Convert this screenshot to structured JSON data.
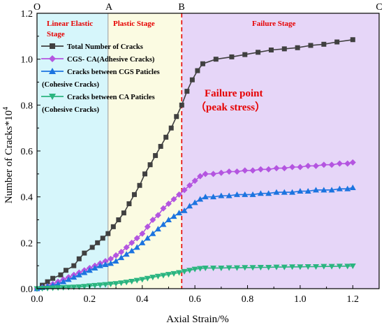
{
  "chart_data": {
    "type": "line",
    "xlabel": "Axial Strain/%",
    "ylabel": "Number of Cracks*10",
    "ylabel_superscript": "4",
    "xlim": [
      0,
      1.3
    ],
    "ylim": [
      0,
      1.2
    ],
    "xticks": [
      "0.0",
      "0.2",
      "0.4",
      "0.6",
      "0.8",
      "1.0",
      "1.2"
    ],
    "yticks": [
      "0.0",
      "0.2",
      "0.4",
      "0.6",
      "0.8",
      "1.0",
      "1.2"
    ],
    "grid": false,
    "legend_placement": "top-left",
    "stages": [
      {
        "name": "Linear Elastic Stage",
        "x_start": 0.0,
        "x_end": 0.27,
        "color": "#d6f6fb"
      },
      {
        "name": "Plastic Stage",
        "x_start": 0.27,
        "x_end": 0.55,
        "color": "#fbfbe2"
      },
      {
        "name": "Failure Stage",
        "x_start": 0.55,
        "x_end": 1.3,
        "color": "#e6d6f8"
      }
    ],
    "stage_points": [
      {
        "label": "O",
        "x": 0.0
      },
      {
        "label": "A",
        "x": 0.27
      },
      {
        "label": "B",
        "x": 0.55
      },
      {
        "label": "C",
        "x": 1.3
      }
    ],
    "failure_line_x": 0.55,
    "annotation": {
      "line1": "Failure point",
      "line2": "（peak stress）"
    },
    "series": [
      {
        "name": "Total Number of Cracks",
        "color": "#404040",
        "marker": "square",
        "x": [
          0.0,
          0.02,
          0.04,
          0.06,
          0.09,
          0.11,
          0.14,
          0.16,
          0.18,
          0.21,
          0.23,
          0.25,
          0.27,
          0.29,
          0.31,
          0.33,
          0.35,
          0.37,
          0.39,
          0.41,
          0.43,
          0.45,
          0.47,
          0.49,
          0.51,
          0.53,
          0.55,
          0.57,
          0.59,
          0.61,
          0.63,
          0.68,
          0.74,
          0.79,
          0.84,
          0.89,
          0.94,
          0.99,
          1.04,
          1.09,
          1.14,
          1.2
        ],
        "y": [
          0.0,
          0.015,
          0.03,
          0.045,
          0.06,
          0.08,
          0.1,
          0.13,
          0.155,
          0.18,
          0.2,
          0.22,
          0.24,
          0.27,
          0.3,
          0.33,
          0.37,
          0.41,
          0.45,
          0.5,
          0.54,
          0.58,
          0.62,
          0.66,
          0.7,
          0.75,
          0.8,
          0.86,
          0.91,
          0.95,
          0.98,
          1.0,
          1.01,
          1.02,
          1.03,
          1.04,
          1.045,
          1.05,
          1.06,
          1.065,
          1.075,
          1.085
        ]
      },
      {
        "name": "CGS- CA(Adhesive Cracks)",
        "color": "#b455e0",
        "marker": "diamond",
        "x": [
          0.0,
          0.02,
          0.04,
          0.06,
          0.08,
          0.1,
          0.12,
          0.14,
          0.16,
          0.18,
          0.2,
          0.22,
          0.24,
          0.26,
          0.28,
          0.3,
          0.32,
          0.34,
          0.36,
          0.38,
          0.4,
          0.42,
          0.44,
          0.46,
          0.48,
          0.5,
          0.52,
          0.54,
          0.56,
          0.58,
          0.6,
          0.62,
          0.64,
          0.67,
          0.7,
          0.73,
          0.76,
          0.79,
          0.82,
          0.85,
          0.88,
          0.91,
          0.94,
          0.97,
          1.0,
          1.03,
          1.06,
          1.09,
          1.12,
          1.15,
          1.18,
          1.2
        ],
        "y": [
          0.0,
          0.005,
          0.01,
          0.02,
          0.03,
          0.04,
          0.05,
          0.06,
          0.07,
          0.08,
          0.09,
          0.1,
          0.11,
          0.12,
          0.13,
          0.145,
          0.16,
          0.18,
          0.2,
          0.22,
          0.24,
          0.27,
          0.3,
          0.32,
          0.35,
          0.37,
          0.39,
          0.41,
          0.43,
          0.45,
          0.47,
          0.49,
          0.5,
          0.5,
          0.505,
          0.51,
          0.51,
          0.515,
          0.515,
          0.52,
          0.52,
          0.525,
          0.525,
          0.53,
          0.53,
          0.535,
          0.535,
          0.54,
          0.54,
          0.545,
          0.545,
          0.55
        ]
      },
      {
        "name": "Cracks between CGS Paticles (Cohesive Cracks)",
        "color": "#1c74e0",
        "marker": "triangle-up",
        "x": [
          0.0,
          0.02,
          0.04,
          0.06,
          0.08,
          0.1,
          0.12,
          0.14,
          0.16,
          0.18,
          0.2,
          0.22,
          0.24,
          0.26,
          0.28,
          0.3,
          0.32,
          0.34,
          0.36,
          0.38,
          0.4,
          0.42,
          0.44,
          0.46,
          0.48,
          0.5,
          0.52,
          0.54,
          0.56,
          0.58,
          0.6,
          0.62,
          0.64,
          0.67,
          0.7,
          0.73,
          0.76,
          0.79,
          0.82,
          0.85,
          0.88,
          0.91,
          0.94,
          0.97,
          1.0,
          1.03,
          1.06,
          1.09,
          1.12,
          1.15,
          1.18,
          1.2
        ],
        "y": [
          0.0,
          0.005,
          0.01,
          0.015,
          0.02,
          0.03,
          0.04,
          0.05,
          0.06,
          0.07,
          0.08,
          0.09,
          0.1,
          0.105,
          0.11,
          0.12,
          0.135,
          0.15,
          0.165,
          0.18,
          0.2,
          0.22,
          0.24,
          0.26,
          0.28,
          0.3,
          0.315,
          0.33,
          0.34,
          0.36,
          0.375,
          0.39,
          0.4,
          0.4,
          0.405,
          0.405,
          0.41,
          0.41,
          0.41,
          0.415,
          0.415,
          0.42,
          0.42,
          0.42,
          0.425,
          0.425,
          0.43,
          0.43,
          0.43,
          0.435,
          0.435,
          0.44
        ]
      },
      {
        "name": "Cracks between CA Paticles (Cohesive Cracks)",
        "color": "#2bb580",
        "marker": "triangle-down",
        "x": [
          0.0,
          0.02,
          0.04,
          0.06,
          0.08,
          0.1,
          0.12,
          0.14,
          0.16,
          0.18,
          0.2,
          0.22,
          0.24,
          0.26,
          0.28,
          0.3,
          0.32,
          0.34,
          0.36,
          0.38,
          0.4,
          0.42,
          0.44,
          0.46,
          0.48,
          0.5,
          0.52,
          0.54,
          0.56,
          0.58,
          0.6,
          0.62,
          0.64,
          0.67,
          0.7,
          0.73,
          0.76,
          0.79,
          0.82,
          0.85,
          0.88,
          0.91,
          0.94,
          0.97,
          1.0,
          1.03,
          1.06,
          1.09,
          1.12,
          1.15,
          1.18,
          1.2
        ],
        "y": [
          0.0,
          0.001,
          0.002,
          0.003,
          0.004,
          0.005,
          0.006,
          0.007,
          0.008,
          0.01,
          0.012,
          0.014,
          0.016,
          0.018,
          0.02,
          0.022,
          0.025,
          0.028,
          0.032,
          0.036,
          0.04,
          0.045,
          0.05,
          0.054,
          0.058,
          0.062,
          0.066,
          0.07,
          0.075,
          0.08,
          0.085,
          0.088,
          0.09,
          0.09,
          0.09,
          0.091,
          0.091,
          0.092,
          0.092,
          0.093,
          0.093,
          0.094,
          0.094,
          0.095,
          0.095,
          0.096,
          0.096,
          0.097,
          0.097,
          0.098,
          0.098,
          0.099
        ]
      }
    ]
  },
  "stage_labels": {
    "linear_line1": "Linear Elastic",
    "linear_line2": "Stage",
    "plastic": "Plastic Stage",
    "failure": "Failure Stage"
  },
  "legend": [
    {
      "line1": "Total Number of Cracks",
      "line2": ""
    },
    {
      "line1": "CGS- CA(Adhesive Cracks)",
      "line2": ""
    },
    {
      "line1": "Cracks between CGS Paticles",
      "line2": "(Cohesive Cracks)"
    },
    {
      "line1": "Cracks between CA Paticles",
      "line2": "(Cohesive Cracks)"
    }
  ]
}
